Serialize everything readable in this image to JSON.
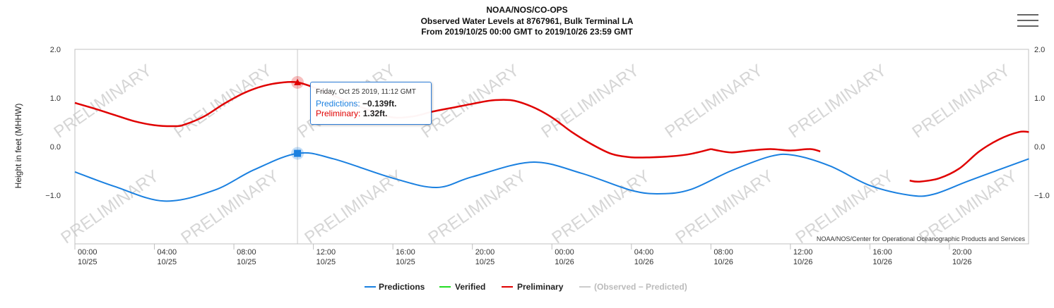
{
  "header": {
    "title_line1": "NOAA/NOS/CO-OPS",
    "title_line2": "Observed Water Levels at 8767961, Bulk Terminal LA",
    "title_line3": "From 2019/10/25 00:00 GMT to 2019/10/26 23:59 GMT",
    "menu_icon": "hamburger-menu-icon"
  },
  "tooltip": {
    "date": "Friday, Oct 25 2019, 11:12 GMT",
    "predictions_label": "Predictions:",
    "predictions_value": "−0.139ft.",
    "preliminary_label": "Preliminary:",
    "preliminary_value": "1.32ft."
  },
  "watermark_text": "PRELIMINARY",
  "credit": "NOAA/NOS/Center for Operational Oceanographic Products and Services",
  "colors": {
    "predictions": "#1a80e0",
    "verified": "#22dd22",
    "preliminary": "#e00000",
    "residual": "#cccccc"
  },
  "chart_data": {
    "type": "line",
    "xlabel": "",
    "ylabel": "Height in feet (MHHW)",
    "x_range_hours": [
      0,
      47.983
    ],
    "ylim": [
      -2.0,
      2.0
    ],
    "y_ticks": [
      2.0,
      1.0,
      0.0,
      -1.0
    ],
    "y_tick_labels": [
      "2.0",
      "1.0",
      "0.0",
      "−1.0"
    ],
    "x_ticks": [
      {
        "hour": 0,
        "time": "00:00",
        "date": "10/25"
      },
      {
        "hour": 4,
        "time": "04:00",
        "date": "10/25"
      },
      {
        "hour": 8,
        "time": "08:00",
        "date": "10/25"
      },
      {
        "hour": 12,
        "time": "12:00",
        "date": "10/25"
      },
      {
        "hour": 16,
        "time": "16:00",
        "date": "10/25"
      },
      {
        "hour": 20,
        "time": "20:00",
        "date": "10/25"
      },
      {
        "hour": 24,
        "time": "00:00",
        "date": "10/26"
      },
      {
        "hour": 28,
        "time": "04:00",
        "date": "10/26"
      },
      {
        "hour": 32,
        "time": "08:00",
        "date": "10/26"
      },
      {
        "hour": 36,
        "time": "12:00",
        "date": "10/26"
      },
      {
        "hour": 40,
        "time": "16:00",
        "date": "10/26"
      },
      {
        "hour": 44,
        "time": "20:00",
        "date": "10/26"
      }
    ],
    "series": [
      {
        "name": "Predictions",
        "x": [
          0,
          2,
          4.5,
          7,
          9,
          11.2,
          13,
          16,
          18.2,
          20,
          23,
          25.5,
          28,
          29.5,
          31,
          33,
          35,
          36.2,
          38,
          40,
          42,
          43.2,
          45,
          48
        ],
        "y": [
          -0.52,
          -0.82,
          -1.12,
          -0.9,
          -0.48,
          -0.139,
          -0.25,
          -0.65,
          -0.84,
          -0.62,
          -0.32,
          -0.55,
          -0.9,
          -0.97,
          -0.88,
          -0.5,
          -0.2,
          -0.18,
          -0.4,
          -0.8,
          -1.0,
          -0.98,
          -0.7,
          -0.25
        ]
      },
      {
        "name": "Verified",
        "x": [],
        "y": []
      },
      {
        "name": "Preliminary",
        "segments": [
          {
            "x": [
              0,
              1,
              2,
              3,
              4,
              5,
              5.5,
              6.5,
              7.5,
              8.5,
              9.5,
              10.5,
              11.2,
              12,
              13,
              14,
              15,
              16,
              17,
              18,
              19,
              20,
              21,
              22,
              23,
              24,
              25,
              26,
              27,
              28,
              29,
              30,
              31,
              32
            ],
            "y": [
              0.9,
              0.78,
              0.65,
              0.52,
              0.44,
              0.42,
              0.45,
              0.62,
              0.88,
              1.1,
              1.25,
              1.32,
              1.32,
              1.22,
              1.05,
              0.88,
              0.72,
              0.6,
              0.62,
              0.72,
              0.8,
              0.88,
              0.95,
              0.95,
              0.82,
              0.6,
              0.3,
              0.05,
              -0.15,
              -0.22,
              -0.22,
              -0.2,
              -0.15,
              -0.05
            ]
          },
          {
            "x": [
              32,
              33,
              34,
              35,
              36,
              37,
              37.5
            ],
            "y": [
              -0.05,
              -0.12,
              -0.08,
              -0.05,
              -0.08,
              -0.05,
              -0.1
            ]
          },
          {
            "x": [
              42,
              42.5,
              43.5,
              44.5,
              45.5,
              46.5,
              47.5,
              48
            ],
            "y": [
              -0.7,
              -0.72,
              -0.65,
              -0.45,
              -0.1,
              0.15,
              0.3,
              0.3
            ]
          }
        ]
      },
      {
        "name": "(Observed − Predicted)",
        "x": [],
        "y": []
      }
    ],
    "highlight": {
      "x": 11.2,
      "predictions": -0.139,
      "preliminary": 1.32
    },
    "legend_position": "bottom-center",
    "grid": false
  },
  "legend": [
    {
      "label": "Predictions",
      "color": "#1a80e0",
      "text_color": "#222222"
    },
    {
      "label": "Verified",
      "color": "#22dd22",
      "text_color": "#222222"
    },
    {
      "label": "Preliminary",
      "color": "#e00000",
      "text_color": "#222222"
    },
    {
      "label": "(Observed − Predicted)",
      "color": "#cccccc",
      "text_color": "#bbbbbb"
    }
  ]
}
